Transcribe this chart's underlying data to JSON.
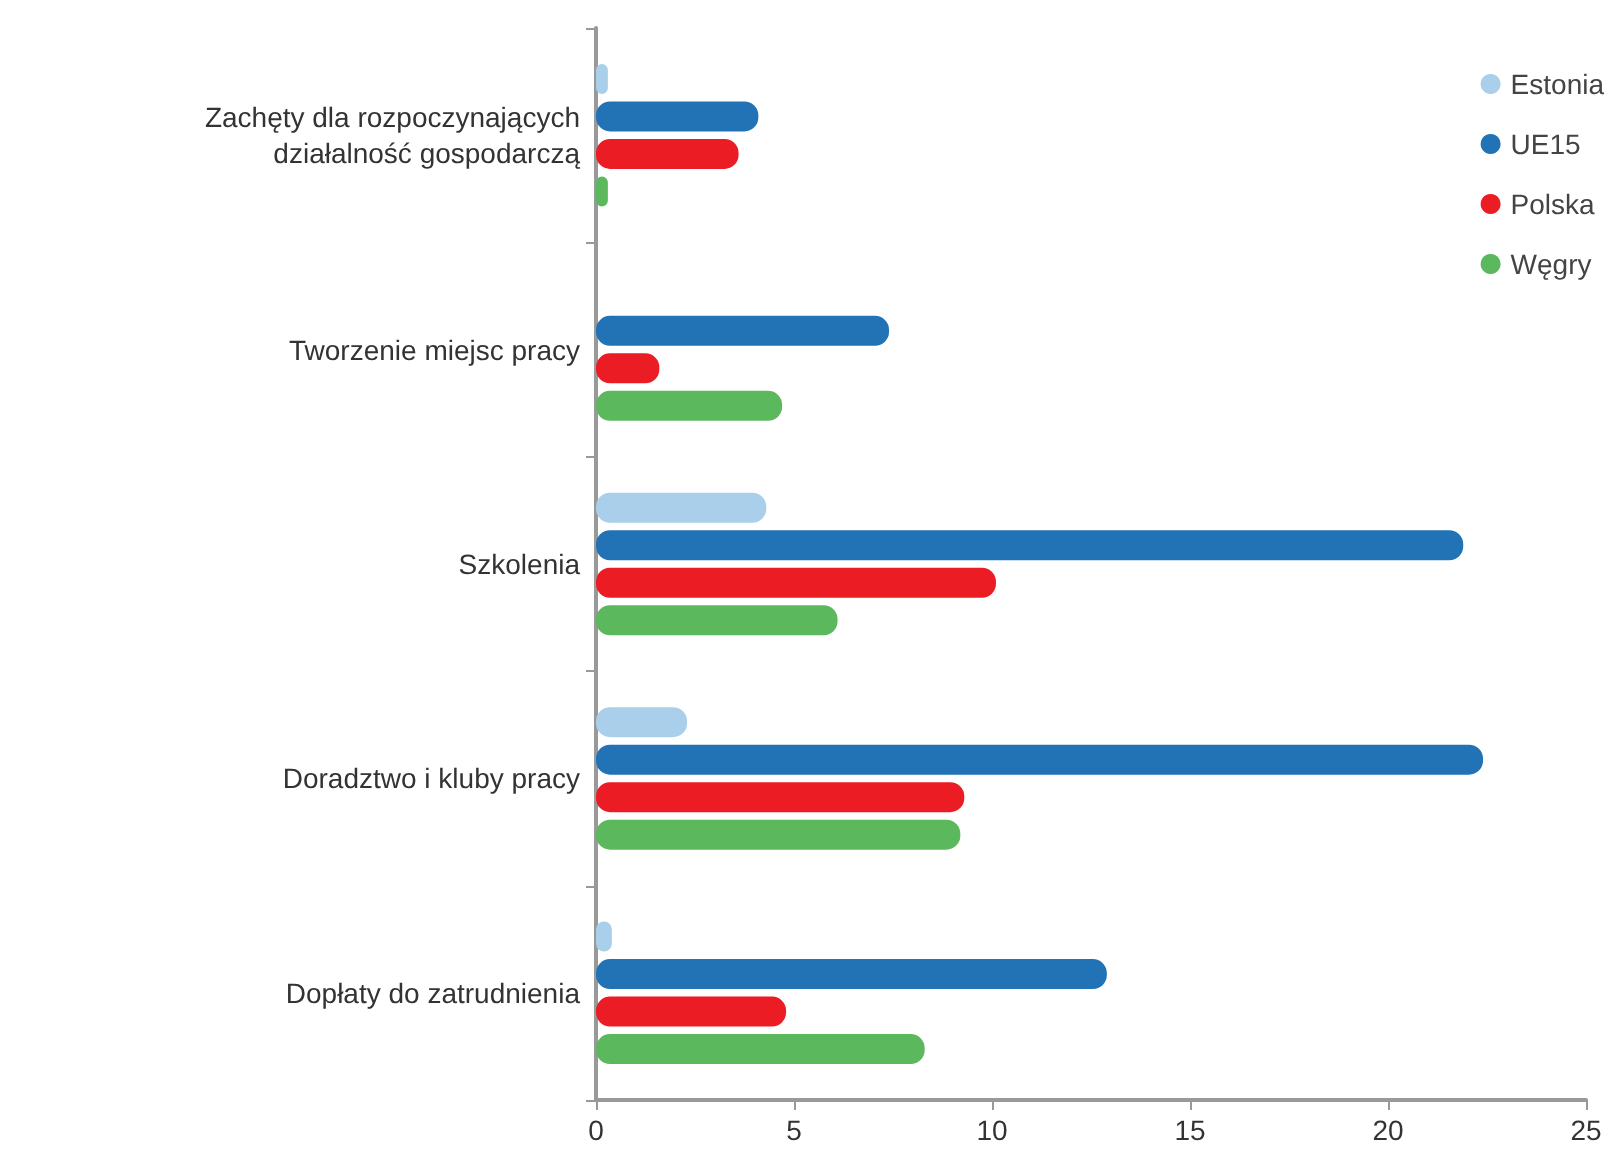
{
  "chart_data": {
    "type": "bar",
    "orientation": "horizontal",
    "categories": [
      "Zachęty dla rozpoczynających\ndziałalność gospodarczą",
      "Tworzenie miejsc pracy",
      "Szkolenia",
      "Doradztwo i kluby pracy",
      "Dopłaty do zatrudnienia"
    ],
    "series": [
      {
        "name": "Estonia",
        "color": "#a9cfea",
        "values": [
          0.3,
          null,
          4.3,
          2.3,
          0.4
        ]
      },
      {
        "name": "UE15",
        "color": "#2173b6",
        "values": [
          4.1,
          7.4,
          21.9,
          22.4,
          12.9
        ]
      },
      {
        "name": "Polska",
        "color": "#ec1c24",
        "values": [
          3.6,
          1.6,
          10.1,
          9.3,
          4.8
        ]
      },
      {
        "name": "Węgry",
        "color": "#5cb85c",
        "values": [
          0.3,
          4.7,
          6.1,
          9.2,
          8.3
        ]
      }
    ],
    "xlim": [
      0,
      25
    ],
    "xticks": [
      0,
      5,
      10,
      15,
      20,
      25
    ],
    "grid": false,
    "legend": "top right"
  }
}
